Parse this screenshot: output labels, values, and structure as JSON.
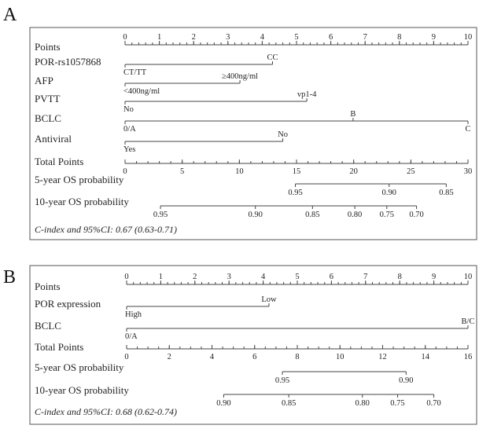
{
  "chart_data": [
    {
      "type": "nomogram",
      "panel_label": "A",
      "points_axis": {
        "label": "Points",
        "range": [
          0,
          10
        ],
        "tick_labels": [
          "0",
          "1",
          "2",
          "3",
          "4",
          "5",
          "6",
          "7",
          "8",
          "9",
          "10"
        ]
      },
      "variables": [
        {
          "name": "POR-rs1057868",
          "levels": [
            {
              "label": "CT/TT",
              "points": 0,
              "side": "below"
            },
            {
              "label": "CC",
              "points": 4.3,
              "side": "above"
            }
          ]
        },
        {
          "name": "AFP",
          "levels": [
            {
              "label": "<400ng/ml",
              "points": 0,
              "side": "below"
            },
            {
              "label": "≥400ng/ml",
              "points": 3.35,
              "side": "above"
            }
          ]
        },
        {
          "name": "PVTT",
          "levels": [
            {
              "label": "No",
              "points": 0,
              "side": "below"
            },
            {
              "label": "vp1-4",
              "points": 5.3,
              "side": "above"
            }
          ]
        },
        {
          "name": "BCLC",
          "levels": [
            {
              "label": "0/A",
              "points": 0,
              "side": "below"
            },
            {
              "label": "B",
              "points": 6.65,
              "side": "above"
            },
            {
              "label": "C",
              "points": 10,
              "side": "below"
            }
          ]
        },
        {
          "name": "Antiviral",
          "levels": [
            {
              "label": "Yes",
              "points": 0,
              "side": "below"
            },
            {
              "label": "No",
              "points": 4.6,
              "side": "above"
            }
          ]
        }
      ],
      "total_axis": {
        "label": "Total Points",
        "range": [
          0,
          30
        ],
        "tick_labels": [
          "0",
          "5",
          "10",
          "15",
          "20",
          "25",
          "30"
        ]
      },
      "probability_scales": [
        {
          "name": "5-year OS probability",
          "ticks": [
            {
              "label": "0.95",
              "total": 14.9
            },
            {
              "label": "0.90",
              "total": 23.1
            },
            {
              "label": "0.85",
              "total": 28.1
            }
          ]
        },
        {
          "name": "10-year OS probability",
          "ticks": [
            {
              "label": "0.95",
              "total": 3.1
            },
            {
              "label": "0.90",
              "total": 11.4
            },
            {
              "label": "0.85",
              "total": 16.4
            },
            {
              "label": "0.80",
              "total": 20.1
            },
            {
              "label": "0.75",
              "total": 22.9
            },
            {
              "label": "0.70",
              "total": 25.5
            }
          ]
        }
      ],
      "c_index": "C-index and 95%CI: 0.67 (0.63-0.71)"
    },
    {
      "type": "nomogram",
      "panel_label": "B",
      "points_axis": {
        "label": "Points",
        "range": [
          0,
          10
        ],
        "tick_labels": [
          "0",
          "1",
          "2",
          "3",
          "4",
          "5",
          "6",
          "7",
          "8",
          "9",
          "10"
        ]
      },
      "variables": [
        {
          "name": "POR expression",
          "levels": [
            {
              "label": "High",
              "points": 0,
              "side": "below"
            },
            {
              "label": "Low",
              "points": 4.17,
              "side": "above"
            }
          ]
        },
        {
          "name": "BCLC",
          "levels": [
            {
              "label": "0/A",
              "points": 0,
              "side": "below"
            },
            {
              "label": "B/C",
              "points": 10,
              "side": "above"
            }
          ]
        }
      ],
      "total_axis": {
        "label": "Total Points",
        "range": [
          0,
          16
        ],
        "tick_labels": [
          "0",
          "2",
          "4",
          "6",
          "8",
          "10",
          "12",
          "14",
          "16"
        ]
      },
      "probability_scales": [
        {
          "name": "5-year OS probability",
          "ticks": [
            {
              "label": "0.95",
              "total": 7.3
            },
            {
              "label": "0.90",
              "total": 13.1
            }
          ]
        },
        {
          "name": "10-year OS probability",
          "ticks": [
            {
              "label": "0.90",
              "total": 4.55
            },
            {
              "label": "0.85",
              "total": 7.6
            },
            {
              "label": "0.80",
              "total": 11.05
            },
            {
              "label": "0.75",
              "total": 12.7
            },
            {
              "label": "0.70",
              "total": 14.4
            }
          ]
        }
      ],
      "c_index": "C-index and 95%CI: 0.68 (0.62-0.74)"
    }
  ],
  "colors": {
    "line": "#444444",
    "frame": "#555555",
    "text": "#222222"
  }
}
